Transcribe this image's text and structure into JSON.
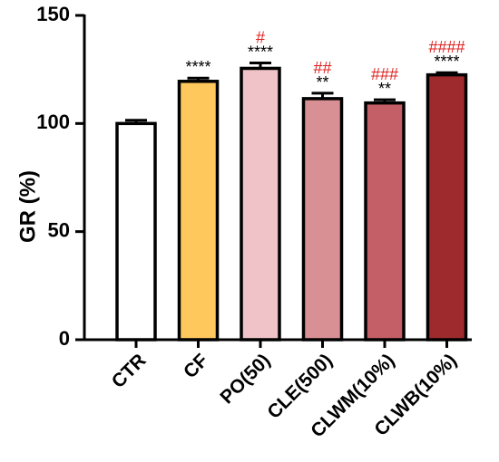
{
  "chart_data": {
    "type": "bar",
    "ylabel": "GR (%)",
    "xlabel": "",
    "ylim": [
      0,
      150
    ],
    "yticks": [
      "0",
      "50",
      "100",
      "150"
    ],
    "categories": [
      "CTR",
      "CF",
      "PO(50)",
      "CLE(500)",
      "CLWM(10%)",
      "CLWB(10%)"
    ],
    "values": [
      100,
      119.5,
      125.5,
      111.5,
      109.5,
      122.5
    ],
    "errors": [
      1.5,
      1.5,
      2.5,
      2.5,
      1.5,
      1.0
    ],
    "colors": [
      "#ffffff",
      "#ffc85c",
      "#efc3c7",
      "#d89094",
      "#c45e67",
      "#9e2a2e"
    ],
    "significance_vs_ctr": [
      "",
      "****",
      "****",
      "**",
      "**",
      "****"
    ],
    "significance_vs_cf": [
      "",
      "",
      "#",
      "##",
      "###",
      "####"
    ],
    "sig_colors": {
      "vs_ctr": "#000000",
      "vs_cf": "#e02020"
    },
    "grid": false,
    "legend": "none"
  }
}
